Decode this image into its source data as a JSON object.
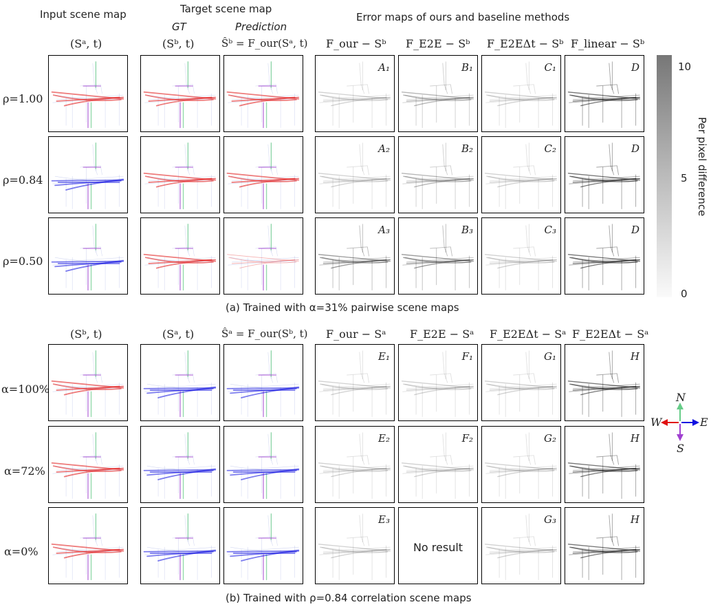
{
  "headers": {
    "input_scene_map": "Input scene map",
    "target_scene_map": "Target scene map",
    "error_maps": "Error maps of ours and baseline methods",
    "gt": "GT",
    "prediction": "Prediction"
  },
  "section_a": {
    "columns": [
      "(Sᵃ, t)",
      "(Sᵇ, t)",
      "Ŝᵇ = F_our(Sᵃ, t)",
      "F_our − Sᵇ",
      "F_E2E − Sᵇ",
      "F_E2EΔt − Sᵇ",
      "F_linear − Sᵇ"
    ],
    "rows": [
      {
        "label": "ρ=1.00",
        "tags": [
          "A₁",
          "B₁",
          "C₁",
          "D"
        ]
      },
      {
        "label": "ρ=0.84",
        "tags": [
          "A₂",
          "B₂",
          "C₂",
          "D"
        ]
      },
      {
        "label": "ρ=0.50",
        "tags": [
          "A₃",
          "B₃",
          "C₃",
          "D"
        ]
      }
    ],
    "caption": "(a) Trained with α=31% pairwise scene maps"
  },
  "section_b": {
    "columns": [
      "(Sᵇ, t)",
      "(Sᵃ, t)",
      "Ŝᵃ = F_our(Sᵇ, t)",
      "F_our − Sᵃ",
      "F_E2E − Sᵃ",
      "F_E2EΔt − Sᵃ",
      "F_E2EΔt − Sᵃ"
    ],
    "rows": [
      {
        "label": "α=100%",
        "tags": [
          "E₁",
          "F₁",
          "G₁",
          "H"
        ]
      },
      {
        "label": "α=72%",
        "tags": [
          "E₂",
          "F₂",
          "G₂",
          "H"
        ]
      },
      {
        "label": "α=0%",
        "tags": [
          "E₃",
          "",
          "G₃",
          "H"
        ]
      }
    ],
    "no_result": "No result",
    "caption": "(b) Trained with ρ=0.84 correlation scene maps"
  },
  "colorbar": {
    "label": "Per pixel difference",
    "ticks": [
      "10",
      "5",
      "0"
    ]
  },
  "compass": {
    "n": "N",
    "s": "S",
    "e": "E",
    "w": "W",
    "colors": {
      "north": "#66cc88",
      "south": "#a040d0",
      "east": "#1010e0",
      "west": "#e01010"
    }
  }
}
